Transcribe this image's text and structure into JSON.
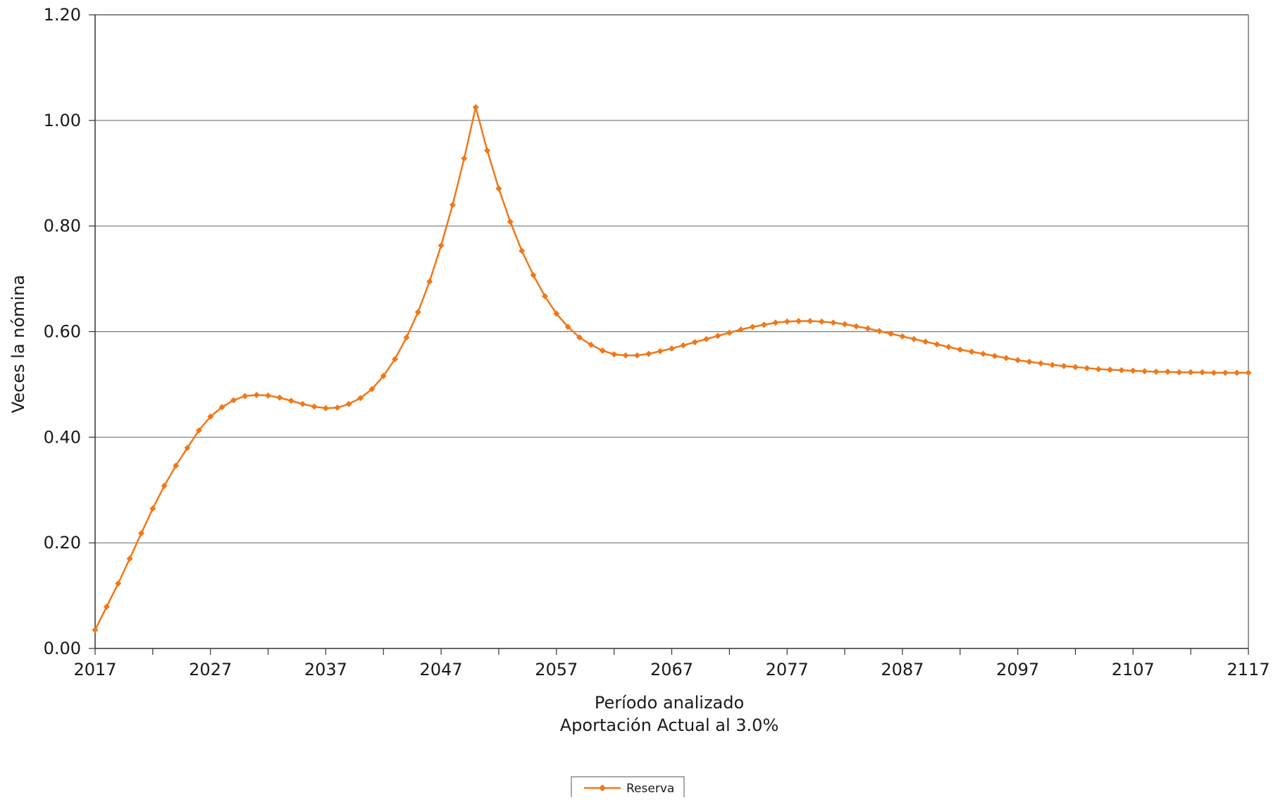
{
  "chart_data": {
    "type": "line",
    "title": "",
    "xlabel": "Período analizado",
    "xlabel_sub": "Aportación Actual al 3.0%",
    "ylabel": "Veces la nómina",
    "xlim": [
      2017,
      2117
    ],
    "ylim": [
      0,
      1.2
    ],
    "x_ticks": [
      "2017",
      "2027",
      "2037",
      "2047",
      "2057",
      "2067",
      "2077",
      "2087",
      "2097",
      "2107",
      "2117"
    ],
    "y_ticks": [
      "0.00",
      "0.20",
      "0.40",
      "0.60",
      "0.80",
      "1.00",
      "1.20"
    ],
    "grid": "horizontal",
    "legend_position": "bottom-center",
    "series_color": "#f07818",
    "series": [
      {
        "name": "Reserva",
        "x": [
          2017,
          2018,
          2019,
          2020,
          2021,
          2022,
          2023,
          2024,
          2025,
          2026,
          2027,
          2028,
          2029,
          2030,
          2031,
          2032,
          2033,
          2034,
          2035,
          2036,
          2037,
          2038,
          2039,
          2040,
          2041,
          2042,
          2043,
          2044,
          2045,
          2046,
          2047,
          2048,
          2049,
          2050,
          2051,
          2052,
          2053,
          2054,
          2055,
          2056,
          2057,
          2058,
          2059,
          2060,
          2061,
          2062,
          2063,
          2064,
          2065,
          2066,
          2067,
          2068,
          2069,
          2070,
          2071,
          2072,
          2073,
          2074,
          2075,
          2076,
          2077,
          2078,
          2079,
          2080,
          2081,
          2082,
          2083,
          2084,
          2085,
          2086,
          2087,
          2088,
          2089,
          2090,
          2091,
          2092,
          2093,
          2094,
          2095,
          2096,
          2097,
          2098,
          2099,
          2100,
          2101,
          2102,
          2103,
          2104,
          2105,
          2106,
          2107,
          2108,
          2109,
          2110,
          2111,
          2112,
          2113,
          2114,
          2115,
          2116,
          2117
        ],
        "values": [
          0.035,
          0.079,
          0.123,
          0.17,
          0.218,
          0.265,
          0.308,
          0.346,
          0.38,
          0.413,
          0.439,
          0.457,
          0.47,
          0.478,
          0.48,
          0.479,
          0.475,
          0.469,
          0.463,
          0.458,
          0.455,
          0.456,
          0.463,
          0.474,
          0.491,
          0.516,
          0.548,
          0.589,
          0.637,
          0.695,
          0.763,
          0.84,
          0.928,
          1.025,
          0.943,
          0.871,
          0.808,
          0.753,
          0.707,
          0.667,
          0.634,
          0.609,
          0.589,
          0.575,
          0.564,
          0.557,
          0.555,
          0.555,
          0.558,
          0.563,
          0.568,
          0.574,
          0.58,
          0.586,
          0.592,
          0.598,
          0.604,
          0.609,
          0.613,
          0.617,
          0.619,
          0.62,
          0.62,
          0.619,
          0.617,
          0.614,
          0.61,
          0.606,
          0.601,
          0.596,
          0.591,
          0.586,
          0.581,
          0.576,
          0.571,
          0.566,
          0.562,
          0.558,
          0.554,
          0.55,
          0.546,
          0.543,
          0.54,
          0.537,
          0.535,
          0.533,
          0.531,
          0.529,
          0.528,
          0.527,
          0.526,
          0.525,
          0.524,
          0.524,
          0.523,
          0.523,
          0.523,
          0.522,
          0.522,
          0.522,
          0.522
        ]
      }
    ]
  }
}
